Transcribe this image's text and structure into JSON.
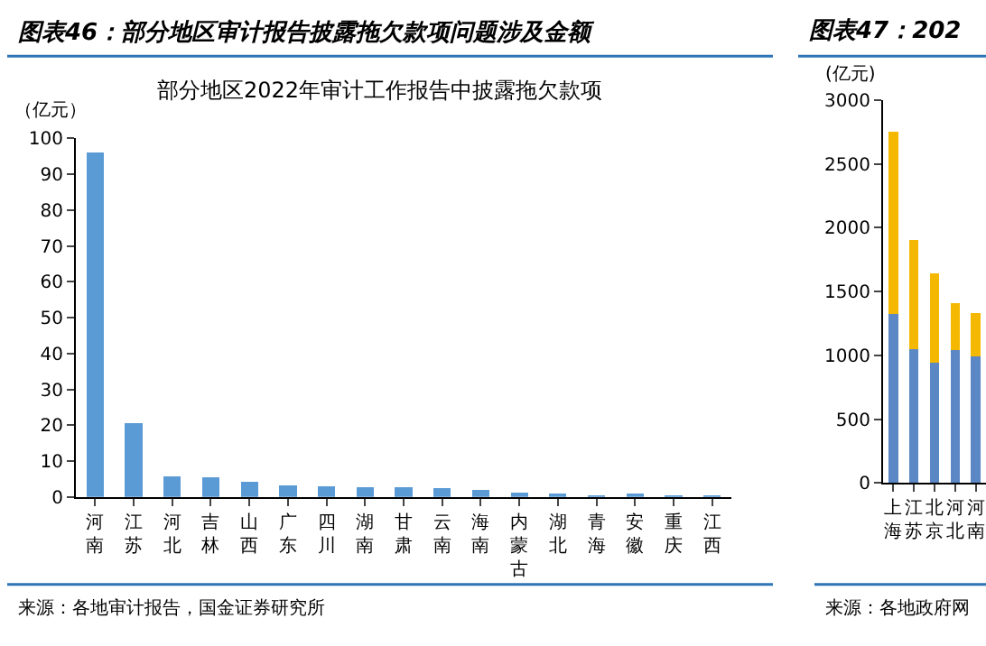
{
  "chart_data": [
    {
      "type": "bar",
      "title": "图表46：部分地区审计报告披露拖欠款项问题涉及金额",
      "subtitle": "部分地区2022年审计工作报告中披露拖欠款项",
      "ylabel": "（亿元）",
      "categories": [
        "河南",
        "江苏",
        "河北",
        "吉林",
        "山西",
        "广东",
        "四川",
        "湖南",
        "甘肃",
        "云南",
        "海南",
        "内蒙古",
        "湖北",
        "青海",
        "安徽",
        "重庆",
        "江西"
      ],
      "values": [
        96,
        20.6,
        5.8,
        5.5,
        4.2,
        3.2,
        2.9,
        2.8,
        2.7,
        2.4,
        1.9,
        1.2,
        0.5,
        0.2,
        0.4,
        0.2,
        0.1
      ],
      "color": "#5b9bd5",
      "ylim": [
        0,
        100
      ],
      "yticks": [
        0,
        10,
        20,
        30,
        40,
        50,
        60,
        70,
        80,
        90,
        100
      ],
      "annotations": [
        "来源：各地审计报告，国金证券研究所"
      ]
    },
    {
      "type": "bar",
      "title": "图表47：202",
      "ylabel": "(亿元)",
      "stacked": true,
      "categories": [
        "上海",
        "江苏",
        "北京",
        "河北",
        "河南"
      ],
      "series": [
        {
          "color": "#5b87c5",
          "values": [
            1320,
            1050,
            940,
            1040,
            990
          ]
        },
        {
          "color": "#f5b800",
          "values": [
            1430,
            850,
            700,
            370,
            340
          ]
        }
      ],
      "ylim": [
        0,
        3000
      ],
      "yticks": [
        0,
        500,
        1000,
        1500,
        2000,
        2500,
        3000
      ],
      "annotations": [
        "来源：各地政府网"
      ]
    }
  ]
}
